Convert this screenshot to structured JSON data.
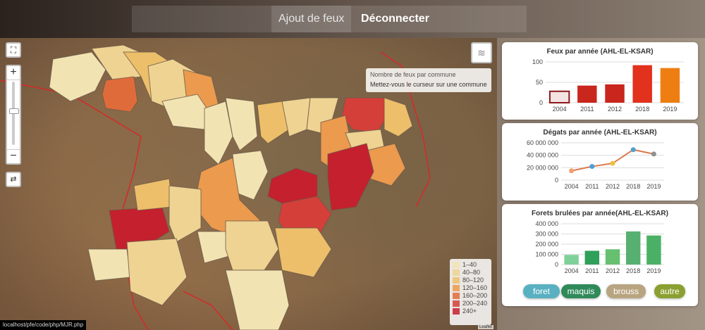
{
  "nav": {
    "add_fire": "Ajout de feux",
    "logout": "Déconnecter"
  },
  "map": {
    "tooltip_title": "Nombre de feux par commune",
    "tooltip_hint": "Mettez-vous le curseur sur une commune",
    "zoom_in": "+",
    "zoom_out": "−",
    "legend": [
      {
        "label": "1–40",
        "color": "#f2e4b2"
      },
      {
        "label": "40–80",
        "color": "#efd392"
      },
      {
        "label": "80–120",
        "color": "#edbf6a"
      },
      {
        "label": "120–160",
        "color": "#eb9a4e"
      },
      {
        "label": "160–200",
        "color": "#e06b3a"
      },
      {
        "label": "200–240",
        "color": "#d43f3a"
      },
      {
        "label": "240+",
        "color": "#c4202e"
      }
    ],
    "attribution": "Leaflet",
    "status_url": "localhost/pfe/code/php/MJR.php"
  },
  "chart_data": [
    {
      "type": "bar",
      "title": "Feux par année (AHL-EL-KSAR)",
      "categories": [
        "2004",
        "2011",
        "2012",
        "2018",
        "2019"
      ],
      "values": [
        28,
        42,
        45,
        92,
        85
      ],
      "colors": [
        "#f3e3e3",
        "#c9261d",
        "#c9261d",
        "#e2311c",
        "#ef7e12"
      ],
      "ylim": [
        0,
        100
      ],
      "yticks": [
        "0",
        "50",
        "100"
      ]
    },
    {
      "type": "line",
      "title": "Dégats par année (AHL-EL-KSAR)",
      "categories": [
        "2004",
        "2011",
        "2012",
        "2018",
        "2019"
      ],
      "values": [
        15000000,
        22000000,
        27000000,
        49000000,
        42000000
      ],
      "colors": [
        "#f0a070",
        "#4a9fd6",
        "#f0c040",
        "#50a0d0",
        "#909090"
      ],
      "ylim": [
        0,
        60000000
      ],
      "yticks": [
        "0",
        "20 000 000",
        "40 000 000",
        "60 000 000"
      ]
    },
    {
      "type": "bar",
      "title": "Forets brulées par année(AHL-EL-KSAR)",
      "categories": [
        "2004",
        "2011",
        "2012",
        "2018",
        "2019"
      ],
      "values": [
        95000,
        135000,
        150000,
        325000,
        285000
      ],
      "colors": [
        "#7fd19a",
        "#2ea05a",
        "#66c070",
        "#58b070",
        "#4ab065"
      ],
      "ylim": [
        0,
        400000
      ],
      "yticks": [
        "0",
        "100 000",
        "200 000",
        "300 000",
        "400 000"
      ]
    }
  ],
  "filters": [
    {
      "label": "foret",
      "color": "#58b0c0"
    },
    {
      "label": "maquis",
      "color": "#2f8a5a"
    },
    {
      "label": "brouss",
      "color": "#b8a480"
    },
    {
      "label": "autre",
      "color": "#8aa030"
    }
  ]
}
